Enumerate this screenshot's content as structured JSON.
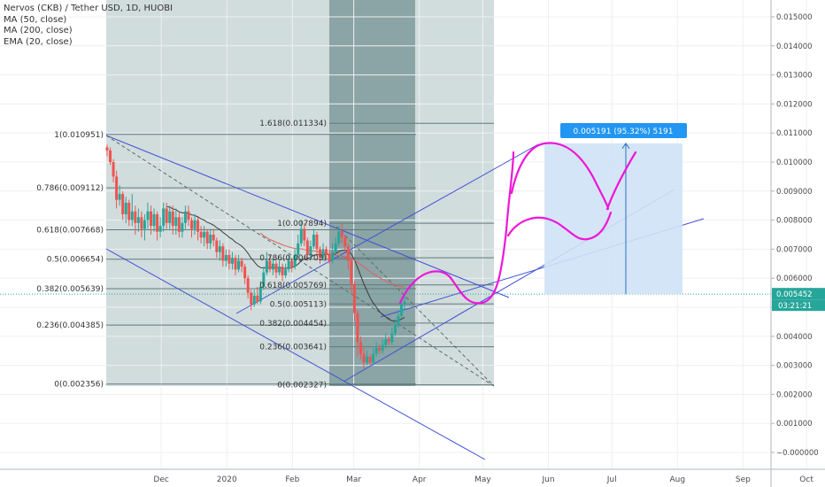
{
  "legend": {
    "symbol": "Nervos (CKB) / Tether USD, 1D, HUOBI",
    "studies": [
      "MA (50, close)",
      "MA (200, close)",
      "EMA (20, close)"
    ]
  },
  "colors": {
    "up": "#26a69a",
    "down": "#ef5350",
    "drawing": "#3f51d6",
    "pink": "#ee16d9",
    "price_tag": "#26a69a",
    "box_fill": "#cfe2f6",
    "box_label": "#2196f3",
    "zone": "#c9d6d6",
    "zone_dark": "#7f9a9c"
  },
  "price_tag": {
    "price": "0.005452",
    "countdown": "03:21:21"
  },
  "measure_label": "0.005191 (95.32%) 5191",
  "chart_data": {
    "type": "candlestick",
    "title": "Nervos (CKB) / Tether USD, 1D, HUOBI",
    "y_ticks": [
      "0.015000",
      "0.014000",
      "0.013000",
      "0.012000",
      "0.011000",
      "0.010000",
      "0.009000",
      "0.008000",
      "0.007000",
      "0.006000",
      "0.005000",
      "0.004000",
      "0.003000",
      "0.002000",
      "0.001000",
      "−0.000000"
    ],
    "x_ticks": [
      "Dec",
      "2020",
      "Feb",
      "Mar",
      "Apr",
      "May",
      "Jun",
      "Jul",
      "Aug",
      "Sep",
      "Oct"
    ],
    "ylim": [
      -0.0003,
      0.0157
    ],
    "x_range": [
      "2019-11-05",
      "2020-10-12"
    ],
    "fib_left": [
      {
        "label": "1(0.010951)",
        "value": 0.010951
      },
      {
        "label": "0.786(0.009112)",
        "value": 0.009112
      },
      {
        "label": "0.618(0.007668)",
        "value": 0.007668
      },
      {
        "label": "0.5(0.006654)",
        "value": 0.006654
      },
      {
        "label": "0.382(0.005639)",
        "value": 0.005639
      },
      {
        "label": "0.236(0.004385)",
        "value": 0.004385
      },
      {
        "label": "0(0.002356)",
        "value": 0.002356
      }
    ],
    "fib_right": [
      {
        "label": "1.618(0.011334)",
        "value": 0.011334
      },
      {
        "label": "1(0.007894)",
        "value": 0.007894
      },
      {
        "label": "0.786(0.006703)",
        "value": 0.006703
      },
      {
        "label": "0.618(0.005769)",
        "value": 0.005769
      },
      {
        "label": "0.5(0.005113)",
        "value": 0.005113
      },
      {
        "label": "0.382(0.004454)",
        "value": 0.004454
      },
      {
        "label": "0.236(0.003641)",
        "value": 0.003641
      },
      {
        "label": "0(0.002327)",
        "value": 0.002327
      }
    ],
    "candles": [
      [
        0.0105,
        0.0104,
        0.0106,
        0.0102
      ],
      [
        0.0104,
        0.01,
        0.0105,
        0.0099
      ],
      [
        0.01,
        0.0095,
        0.0101,
        0.0093
      ],
      [
        0.0095,
        0.0087,
        0.0097,
        0.0084
      ],
      [
        0.0087,
        0.0089,
        0.0092,
        0.0085
      ],
      [
        0.0089,
        0.0082,
        0.009,
        0.008
      ],
      [
        0.0082,
        0.0086,
        0.0088,
        0.0079
      ],
      [
        0.0086,
        0.008,
        0.0087,
        0.0078
      ],
      [
        0.008,
        0.0083,
        0.0089,
        0.0078
      ],
      [
        0.0083,
        0.0079,
        0.0085,
        0.0075
      ],
      [
        0.0079,
        0.0081,
        0.0084,
        0.0076
      ],
      [
        0.0081,
        0.0077,
        0.0083,
        0.0074
      ],
      [
        0.0077,
        0.008,
        0.0082,
        0.0073
      ],
      [
        0.008,
        0.0083,
        0.0086,
        0.0077
      ],
      [
        0.0083,
        0.0078,
        0.0085,
        0.0075
      ],
      [
        0.0078,
        0.0082,
        0.0084,
        0.0076
      ],
      [
        0.0082,
        0.0076,
        0.0083,
        0.0073
      ],
      [
        0.0076,
        0.0078,
        0.0081,
        0.0074
      ],
      [
        0.0078,
        0.0084,
        0.0086,
        0.0076
      ],
      [
        0.0084,
        0.0079,
        0.0086,
        0.0077
      ],
      [
        0.0079,
        0.0083,
        0.0085,
        0.0077
      ],
      [
        0.0083,
        0.0078,
        0.0085,
        0.0075
      ],
      [
        0.0078,
        0.0081,
        0.0084,
        0.0075
      ],
      [
        0.0081,
        0.0076,
        0.0083,
        0.0074
      ],
      [
        0.0076,
        0.0079,
        0.0081,
        0.0074
      ],
      [
        0.0079,
        0.0083,
        0.0085,
        0.0077
      ],
      [
        0.0083,
        0.008,
        0.0085,
        0.0078
      ],
      [
        0.008,
        0.0077,
        0.0081,
        0.0074
      ],
      [
        0.0077,
        0.008,
        0.0082,
        0.0075
      ],
      [
        0.008,
        0.0076,
        0.0081,
        0.0073
      ],
      [
        0.0076,
        0.0074,
        0.0078,
        0.0072
      ],
      [
        0.0074,
        0.0076,
        0.0078,
        0.0071
      ],
      [
        0.0076,
        0.0072,
        0.0077,
        0.007
      ],
      [
        0.0072,
        0.0075,
        0.0077,
        0.007
      ],
      [
        0.0075,
        0.0073,
        0.0077,
        0.0071
      ],
      [
        0.0073,
        0.0069,
        0.0074,
        0.0067
      ],
      [
        0.0069,
        0.0071,
        0.0073,
        0.0066
      ],
      [
        0.0071,
        0.0066,
        0.0072,
        0.0064
      ],
      [
        0.0066,
        0.0068,
        0.007,
        0.0064
      ],
      [
        0.0068,
        0.0065,
        0.007,
        0.0063
      ],
      [
        0.0065,
        0.0067,
        0.0069,
        0.0063
      ],
      [
        0.0067,
        0.0063,
        0.0068,
        0.0061
      ],
      [
        0.0063,
        0.0066,
        0.0068,
        0.0062
      ],
      [
        0.0066,
        0.0064,
        0.0067,
        0.0062
      ],
      [
        0.0064,
        0.006,
        0.0065,
        0.0058
      ],
      [
        0.006,
        0.0055,
        0.0061,
        0.0053
      ],
      [
        0.0055,
        0.0051,
        0.0056,
        0.0049
      ],
      [
        0.0051,
        0.0054,
        0.0056,
        0.005
      ],
      [
        0.0054,
        0.0052,
        0.0057,
        0.0051
      ],
      [
        0.0052,
        0.0057,
        0.0059,
        0.0051
      ],
      [
        0.0057,
        0.0062,
        0.0064,
        0.0056
      ],
      [
        0.0062,
        0.0066,
        0.0069,
        0.0061
      ],
      [
        0.0066,
        0.0063,
        0.0068,
        0.0062
      ],
      [
        0.0063,
        0.0065,
        0.0067,
        0.0061
      ],
      [
        0.0065,
        0.0062,
        0.0066,
        0.006
      ],
      [
        0.0062,
        0.0064,
        0.0066,
        0.0061
      ],
      [
        0.0064,
        0.0061,
        0.0065,
        0.0059
      ],
      [
        0.0061,
        0.0063,
        0.0065,
        0.006
      ],
      [
        0.0063,
        0.0066,
        0.0068,
        0.0062
      ],
      [
        0.0066,
        0.0064,
        0.0067,
        0.0062
      ],
      [
        0.0064,
        0.0068,
        0.007,
        0.0063
      ],
      [
        0.0068,
        0.0072,
        0.0075,
        0.0067
      ],
      [
        0.0072,
        0.0077,
        0.008,
        0.0071
      ],
      [
        0.0077,
        0.0073,
        0.0079,
        0.0071
      ],
      [
        0.0073,
        0.0068,
        0.0074,
        0.0066
      ],
      [
        0.0068,
        0.0071,
        0.0073,
        0.0067
      ],
      [
        0.0071,
        0.0075,
        0.0077,
        0.007
      ],
      [
        0.0075,
        0.007,
        0.0076,
        0.0068
      ],
      [
        0.007,
        0.0067,
        0.0071,
        0.0065
      ],
      [
        0.0067,
        0.007,
        0.0072,
        0.0066
      ],
      [
        0.007,
        0.0068,
        0.0071,
        0.0066
      ],
      [
        0.0068,
        0.0066,
        0.007,
        0.0065
      ],
      [
        0.0066,
        0.0069,
        0.0072,
        0.0065
      ],
      [
        0.0069,
        0.0072,
        0.0074,
        0.0068
      ],
      [
        0.0072,
        0.0076,
        0.0078,
        0.0071
      ],
      [
        0.0076,
        0.0074,
        0.0079,
        0.0072
      ],
      [
        0.0074,
        0.0071,
        0.0075,
        0.0069
      ],
      [
        0.0071,
        0.0066,
        0.0072,
        0.0063
      ],
      [
        0.0066,
        0.0058,
        0.0067,
        0.0055
      ],
      [
        0.0058,
        0.0048,
        0.0059,
        0.0045
      ],
      [
        0.0048,
        0.0038,
        0.0049,
        0.0033
      ],
      [
        0.0038,
        0.0034,
        0.004,
        0.0032
      ],
      [
        0.0034,
        0.0031,
        0.0036,
        0.0029
      ],
      [
        0.0031,
        0.0033,
        0.0035,
        0.003
      ],
      [
        0.0033,
        0.0031,
        0.0034,
        0.003
      ],
      [
        0.0031,
        0.0034,
        0.0036,
        0.003
      ],
      [
        0.0034,
        0.0036,
        0.0038,
        0.0033
      ],
      [
        0.0036,
        0.0035,
        0.0037,
        0.0034
      ],
      [
        0.0035,
        0.0037,
        0.0039,
        0.0034
      ],
      [
        0.0037,
        0.0039,
        0.0041,
        0.0036
      ],
      [
        0.0039,
        0.0038,
        0.004,
        0.0037
      ],
      [
        0.0038,
        0.0041,
        0.0043,
        0.0037
      ],
      [
        0.0041,
        0.0044,
        0.0046,
        0.004
      ],
      [
        0.0044,
        0.0047,
        0.0049,
        0.0043
      ],
      [
        0.0047,
        0.0051,
        0.0053,
        0.0046
      ],
      [
        0.0051,
        0.0052,
        0.0054,
        0.0049
      ]
    ]
  }
}
